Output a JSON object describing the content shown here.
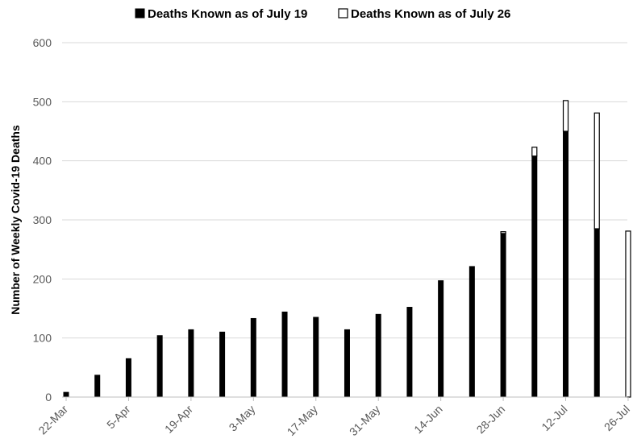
{
  "chart_data": {
    "type": "bar",
    "stacked": true,
    "title": "",
    "xlabel": "",
    "ylabel": "Number of Weekly Covid-19 Deaths",
    "ylim": [
      0,
      600
    ],
    "yticks": [
      0,
      100,
      200,
      300,
      400,
      500,
      600
    ],
    "grid": true,
    "legend_position": "top",
    "x_tick_labels": [
      "22-Mar",
      "5-Apr",
      "19-Apr",
      "3-May",
      "17-May",
      "31-May",
      "14-Jun",
      "28-Jun",
      "12-Jul",
      "26-Jul"
    ],
    "x": [
      "22-Mar",
      "29-Mar",
      "5-Apr",
      "12-Apr",
      "19-Apr",
      "26-Apr",
      "3-May",
      "10-May",
      "17-May",
      "24-May",
      "31-May",
      "7-Jun",
      "14-Jun",
      "21-Jun",
      "28-Jun",
      "5-Jul",
      "12-Jul",
      "19-Jul",
      "26-Jul"
    ],
    "series": [
      {
        "name": "Deaths Known as of July 19",
        "color": "#000000",
        "values": [
          8,
          37,
          65,
          104,
          114,
          110,
          133,
          144,
          135,
          114,
          140,
          152,
          197,
          221,
          277,
          408,
          450,
          285,
          0
        ]
      },
      {
        "name": "Deaths Known as of July 26",
        "color": "#ffffff",
        "values": [
          0,
          0,
          0,
          0,
          0,
          0,
          0,
          0,
          0,
          0,
          0,
          0,
          0,
          0,
          3,
          15,
          52,
          196,
          281
        ]
      }
    ]
  }
}
